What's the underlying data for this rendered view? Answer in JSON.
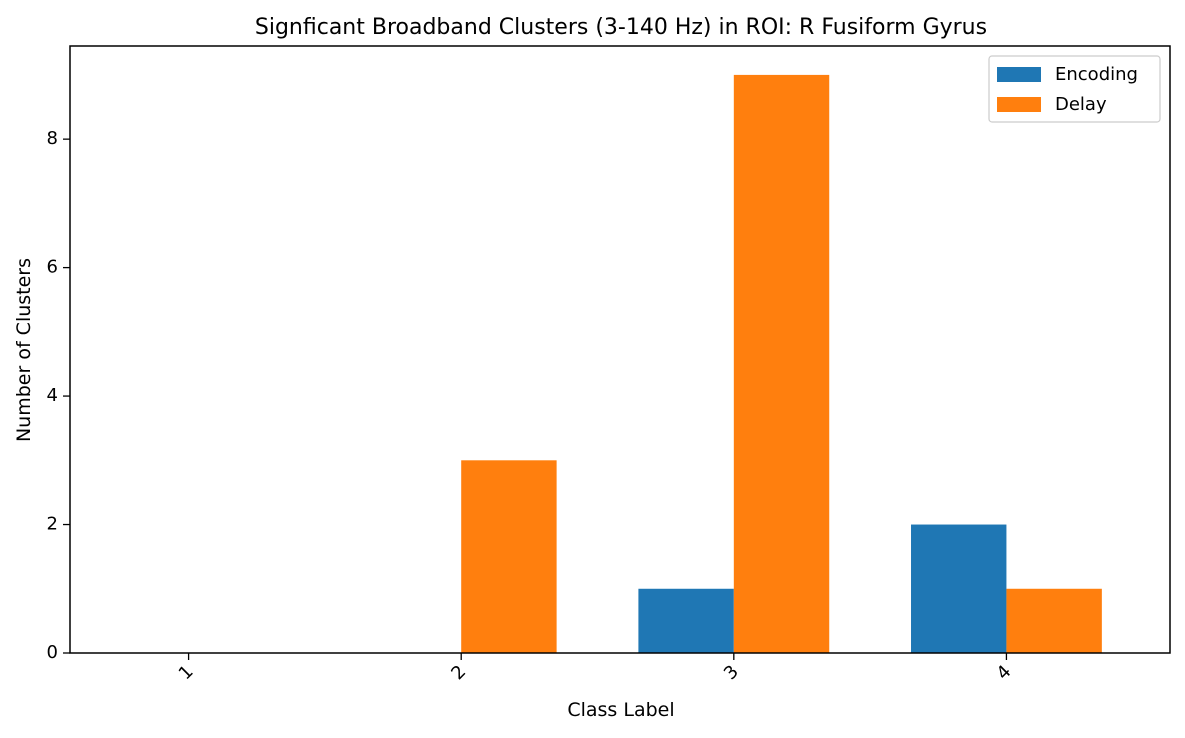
{
  "chart_data": {
    "type": "bar",
    "title": "Signficant Broadband Clusters (3-140 Hz) in ROI: R Fusiform Gyrus",
    "xlabel": "Class Label",
    "ylabel": "Number of Clusters",
    "categories": [
      "1",
      "2",
      "3",
      "4"
    ],
    "series": [
      {
        "name": "Encoding",
        "values": [
          0,
          0,
          1,
          2
        ],
        "color": "#1f77b4"
      },
      {
        "name": "Delay",
        "values": [
          0,
          3,
          9,
          1
        ],
        "color": "#ff7f0e"
      }
    ],
    "ylim": [
      0,
      9.45
    ],
    "yticks": [
      0,
      2,
      4,
      6,
      8
    ],
    "xtick_rotation_deg": 45,
    "grid": false,
    "legend_position": "upper right"
  }
}
